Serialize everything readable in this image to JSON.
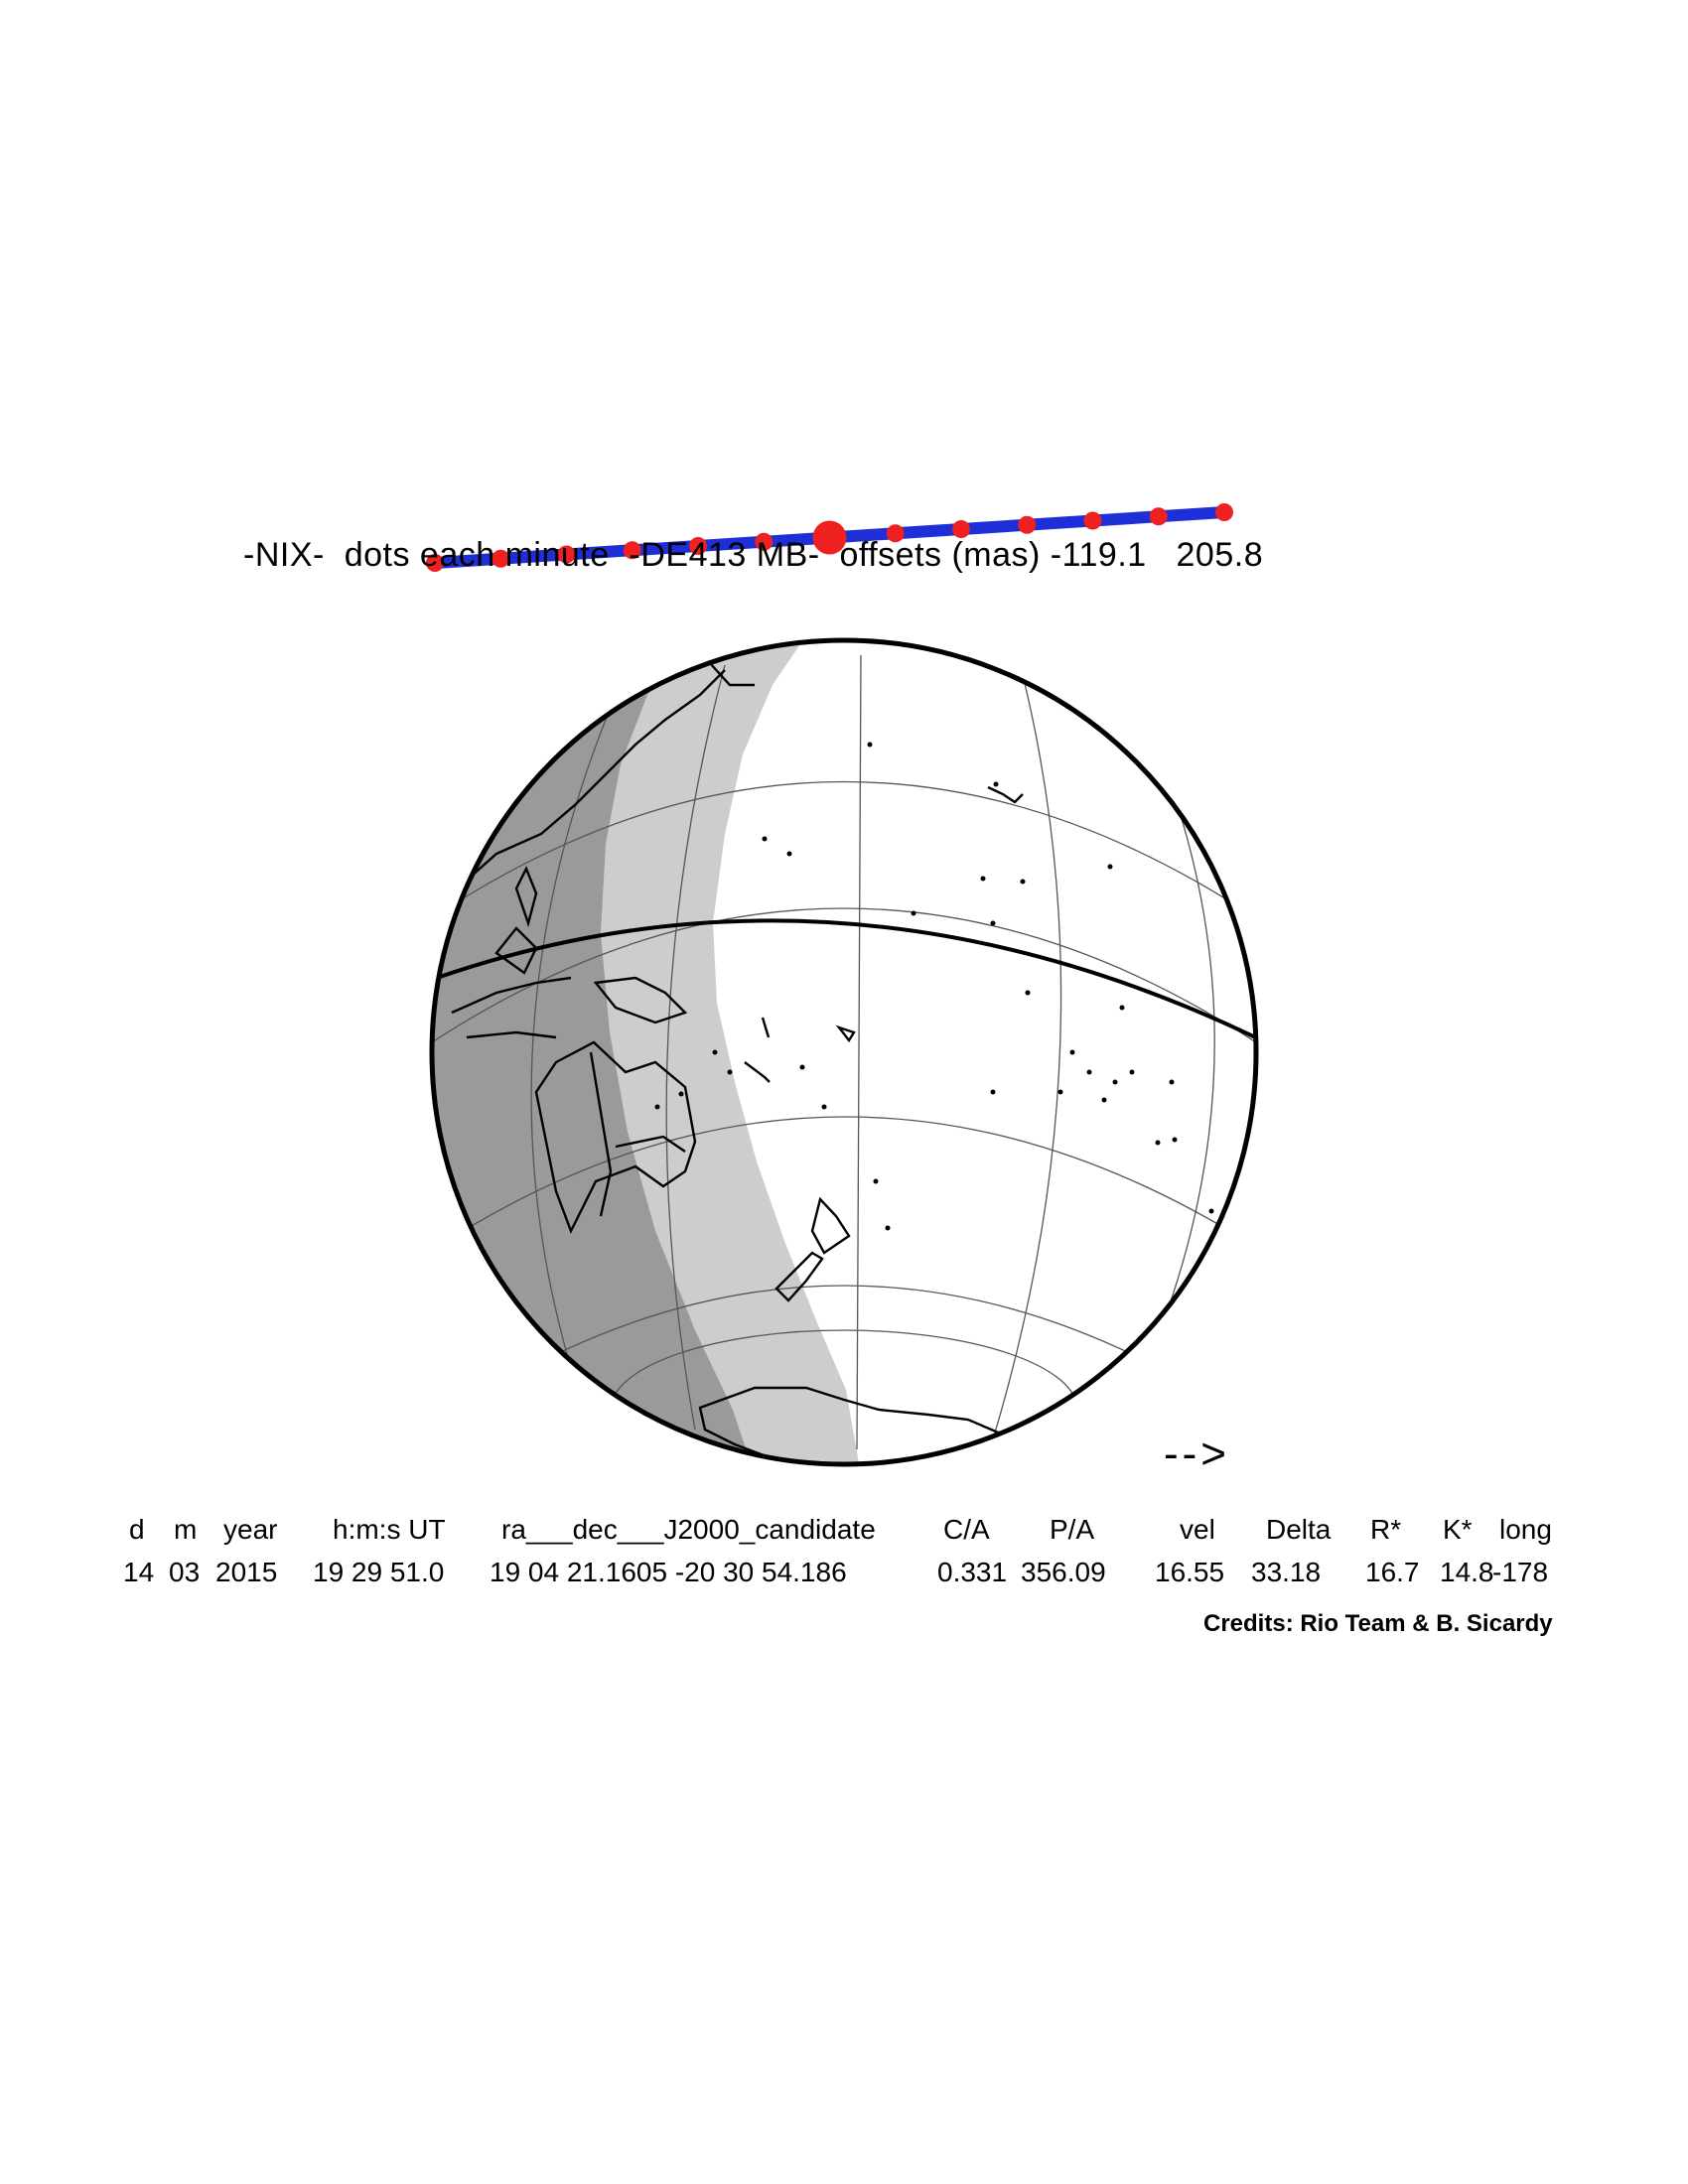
{
  "title": "-NIX-  dots each minute  -DE413 MB-  offsets (mas) -119.1   205.8",
  "direction_arrow": "-->",
  "table": {
    "headers": [
      "d",
      "m",
      "year",
      "h:m:s UT",
      "ra___dec___J2000_candidate",
      "C/A",
      "P/A",
      "vel",
      "Delta",
      "R*",
      "K*",
      "long"
    ],
    "values": [
      "14",
      "03",
      "2015",
      "19 29 51.0",
      "19 04 21.1605 -20 30 54.186",
      "0.331",
      "356.09",
      "16.55",
      "33.18",
      "16.7",
      "14.8",
      "-178"
    ]
  },
  "credits": "Credits: Rio Team & B. Sicardy",
  "colors": {
    "night": "#9a9a9a",
    "twilight": "#cdcdcd",
    "day": "#ffffff",
    "track": "#1f2fd8",
    "dots": "#ee2020"
  },
  "track": {
    "minute_dots": 13,
    "central_dot_index": 6
  }
}
